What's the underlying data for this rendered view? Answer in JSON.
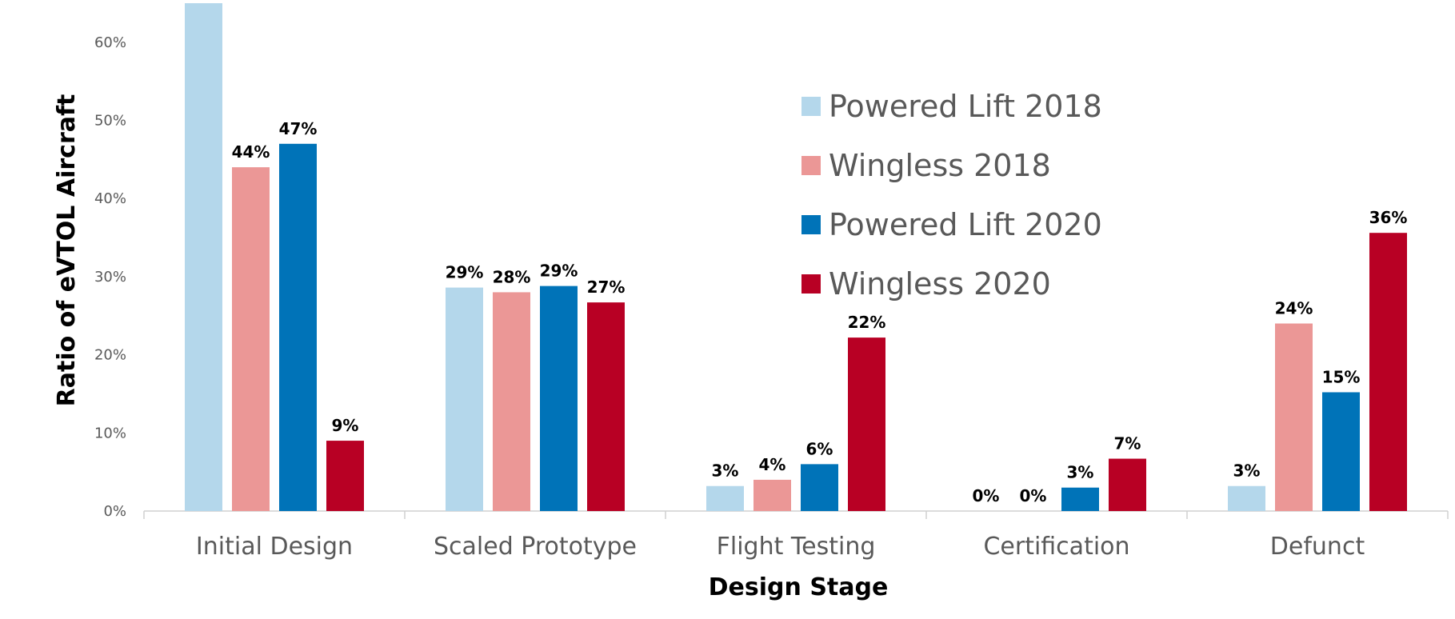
{
  "chart_data": {
    "type": "bar",
    "title": "",
    "xlabel": "Design Stage",
    "ylabel": "Ratio of eVTOL Aircraft",
    "ylim": [
      0,
      65
    ],
    "yticks": [
      0,
      10,
      20,
      30,
      40,
      50,
      60
    ],
    "ytick_labels": [
      "0%",
      "10%",
      "20%",
      "30%",
      "40%",
      "50%",
      "60%"
    ],
    "grid": false,
    "legend_position": "top-right",
    "categories": [
      "Initial Design",
      "Scaled Prototype",
      "Flight Testing",
      "Certification",
      "Defunct"
    ],
    "series": [
      {
        "name": "Powered Lift 2018",
        "color": "#B4D7EB",
        "values": [
          65,
          28.6,
          3.2,
          0,
          3.2
        ],
        "labels": [
          "",
          "29%",
          "3%",
          "0%",
          "3%"
        ]
      },
      {
        "name": "Wingless 2018",
        "color": "#EB9796",
        "values": [
          44,
          28,
          4,
          0,
          24
        ],
        "labels": [
          "44%",
          "28%",
          "4%",
          "0%",
          "24%"
        ]
      },
      {
        "name": "Powered Lift 2020",
        "color": "#0073B8",
        "values": [
          47,
          28.8,
          6,
          3,
          15.2
        ],
        "labels": [
          "47%",
          "29%",
          "6%",
          "3%",
          "15%"
        ]
      },
      {
        "name": "Wingless 2020",
        "color": "#B80024",
        "values": [
          9,
          26.7,
          22.2,
          6.7,
          35.6
        ],
        "labels": [
          "9%",
          "27%",
          "22%",
          "7%",
          "36%"
        ]
      }
    ]
  }
}
